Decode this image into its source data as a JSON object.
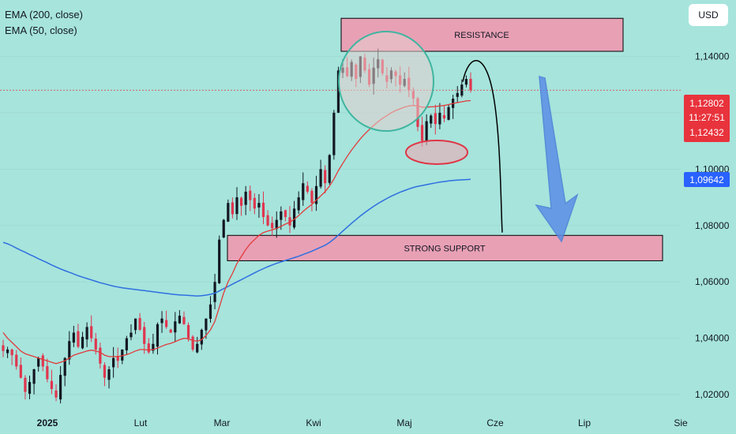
{
  "legend": {
    "ema200": "EMA (200, close)",
    "ema50": "EMA (50, close)"
  },
  "currency_button": "USD",
  "colors": {
    "background": "#a6e4dc",
    "bull": "#131722",
    "bear": "#e0364f",
    "ema50": "#e23a3a",
    "ema200": "#2f6fe0",
    "zone_fill": "#e8a0b5",
    "price_tag": "#e8333c",
    "ema200_tag": "#2962ff",
    "arrow": "#5b8ee6"
  },
  "chart_data": {
    "type": "candlestick",
    "y_axis": {
      "min": 1.015,
      "max": 1.16,
      "ticks": [
        "1,14000",
        "1,12000",
        "1,10000",
        "1,08000",
        "1,06000",
        "1,04000",
        "1,02000"
      ],
      "tick_values": [
        1.14,
        1.12,
        1.1,
        1.08,
        1.06,
        1.04,
        1.02
      ]
    },
    "x_axis": {
      "labels": [
        "2025",
        "Lut",
        "Mar",
        "Kwi",
        "Maj",
        "Cze",
        "Lip",
        "Sie"
      ]
    },
    "price_tags": {
      "last_price": "1,12802",
      "countdown": "11:27:51",
      "ema50_value": "1,12432",
      "ema200_value": "1,09642"
    },
    "zones": {
      "resistance": {
        "label": "RESISTANCE",
        "low": 1.1418,
        "high": 1.1535
      },
      "support": {
        "label": "STRONG SUPPORT",
        "low": 1.0675,
        "high": 1.0765
      }
    },
    "closes": [
      1.0355,
      1.036,
      1.034,
      1.03,
      1.026,
      1.021,
      1.0245,
      1.029,
      1.033,
      1.03,
      1.0255,
      1.022,
      1.019,
      1.027,
      1.033,
      1.039,
      1.042,
      1.037,
      1.0405,
      1.044,
      1.04,
      1.036,
      1.031,
      1.026,
      1.029,
      1.033,
      1.032,
      1.036,
      1.04,
      1.042,
      1.047,
      1.043,
      1.038,
      1.035,
      1.038,
      1.045,
      1.047,
      1.044,
      1.042,
      1.046,
      1.048,
      1.045,
      1.04,
      1.036,
      1.038,
      1.043,
      1.047,
      1.052,
      1.06,
      1.075,
      1.082,
      1.088,
      1.084,
      1.09,
      1.087,
      1.092,
      1.089,
      1.086,
      1.088,
      1.083,
      1.08,
      1.079,
      1.082,
      1.085,
      1.083,
      1.08,
      1.086,
      1.09,
      1.095,
      1.092,
      1.088,
      1.094,
      1.1,
      1.095,
      1.105,
      1.12,
      1.135,
      1.136,
      1.133,
      1.138,
      1.132,
      1.14,
      1.135,
      1.13,
      1.136,
      1.139,
      1.134,
      1.131,
      1.135,
      1.133,
      1.13,
      1.132,
      1.128,
      1.125,
      1.115,
      1.11,
      1.117,
      1.119,
      1.116,
      1.12,
      1.118,
      1.122,
      1.125,
      1.127,
      1.13,
      1.132,
      1.128
    ],
    "ema50": [
      1.042,
      1.04,
      1.0385,
      1.037,
      1.0355,
      1.0345,
      1.034,
      1.0335,
      1.033,
      1.0325,
      1.032,
      1.0315,
      1.031,
      1.0315,
      1.032,
      1.033,
      1.034,
      1.0345,
      1.035,
      1.0355,
      1.0358,
      1.0355,
      1.035,
      1.034,
      1.0335,
      1.0335,
      1.0335,
      1.0338,
      1.0342,
      1.0348,
      1.0355,
      1.036,
      1.036,
      1.0358,
      1.036,
      1.0365,
      1.0372,
      1.0378,
      1.0382,
      1.0388,
      1.0395,
      1.04,
      1.0398,
      1.0392,
      1.039,
      1.0395,
      1.041,
      1.043,
      1.046,
      1.051,
      1.056,
      1.06,
      1.063,
      1.0665,
      1.069,
      1.0715,
      1.0735,
      1.075,
      1.0765,
      1.0775,
      1.078,
      1.0785,
      1.079,
      1.0797,
      1.0805,
      1.0812,
      1.0822,
      1.0835,
      1.085,
      1.0863,
      1.0875,
      1.089,
      1.0905,
      1.092,
      1.094,
      1.0965,
      1.0995,
      1.102,
      1.1045,
      1.1068,
      1.1088,
      1.1108,
      1.1125,
      1.114,
      1.1155,
      1.1168,
      1.118,
      1.119,
      1.12,
      1.1208,
      1.1214,
      1.122,
      1.1224,
      1.1226,
      1.1224,
      1.122,
      1.122,
      1.1221,
      1.1222,
      1.1224,
      1.1226,
      1.1229,
      1.1233,
      1.1236,
      1.1239,
      1.1242,
      1.1243
    ],
    "ema200": [
      1.074,
      1.0735,
      1.0728,
      1.072,
      1.0712,
      1.0705,
      1.0697,
      1.069,
      1.0682,
      1.0675,
      1.0668,
      1.066,
      1.0653,
      1.0646,
      1.064,
      1.0634,
      1.0628,
      1.0622,
      1.0617,
      1.0612,
      1.0607,
      1.0602,
      1.0597,
      1.0593,
      1.0589,
      1.0585,
      1.0582,
      1.0579,
      1.0577,
      1.0575,
      1.0573,
      1.0571,
      1.0569,
      1.0567,
      1.0565,
      1.0563,
      1.0561,
      1.0559,
      1.0557,
      1.0555,
      1.0554,
      1.0553,
      1.0552,
      1.0551,
      1.055,
      1.0551,
      1.0553,
      1.0556,
      1.056,
      1.0568,
      1.0576,
      1.0584,
      1.0592,
      1.06,
      1.0608,
      1.0616,
      1.0624,
      1.0632,
      1.064,
      1.0647,
      1.0654,
      1.066,
      1.0666,
      1.0671,
      1.0676,
      1.0681,
      1.0686,
      1.0691,
      1.0697,
      1.0703,
      1.0709,
      1.0716,
      1.0723,
      1.073,
      1.074,
      1.0752,
      1.0766,
      1.078,
      1.0794,
      1.0808,
      1.0821,
      1.0834,
      1.0846,
      1.0857,
      1.0868,
      1.0878,
      1.0887,
      1.0896,
      1.0904,
      1.0911,
      1.0918,
      1.0924,
      1.093,
      1.0935,
      1.0939,
      1.0942,
      1.0945,
      1.0948,
      1.0951,
      1.0954,
      1.0956,
      1.0958,
      1.096,
      1.0961,
      1.0962,
      1.0963,
      1.0964
    ],
    "projection": {
      "peak": 1.1385,
      "end": 1.0775
    }
  }
}
